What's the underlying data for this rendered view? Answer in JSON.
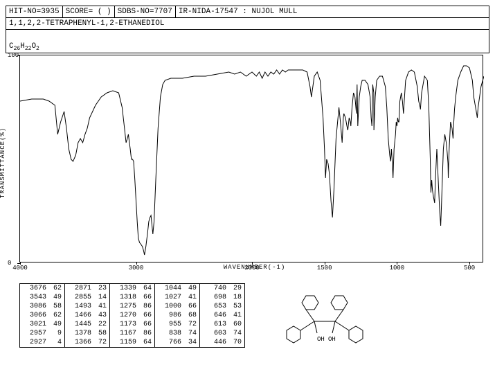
{
  "header": {
    "hit_no": "HIT-NO=3935",
    "score": "SCORE=  (  )",
    "sdbs_no": "SDBS-NO=7707",
    "ir_info": "IR-NIDA-17547 : NUJOL MULL"
  },
  "title": "1,1,2,2-TETRAPHENYL-1,2-ETHANEDIOL",
  "formula_html": "C<sub>26</sub>H<sub>22</sub>O<sub>2</sub>",
  "chart": {
    "ylabel": "TRANSMITTANCE(%)",
    "xlabel": "WAVENUMBER(-1)",
    "ylim": [
      0,
      100
    ],
    "xlim": [
      4000,
      400
    ],
    "yticks": [
      0,
      100
    ],
    "xticks": [
      4000,
      3000,
      2000,
      1500,
      1000,
      500
    ],
    "line_color": "#000000",
    "background": "#ffffff",
    "spectrum": [
      [
        4000,
        78
      ],
      [
        3900,
        79
      ],
      [
        3800,
        79
      ],
      [
        3750,
        78
      ],
      [
        3700,
        76
      ],
      [
        3676,
        62
      ],
      [
        3650,
        68
      ],
      [
        3620,
        73
      ],
      [
        3600,
        65
      ],
      [
        3580,
        55
      ],
      [
        3560,
        50
      ],
      [
        3543,
        49
      ],
      [
        3520,
        52
      ],
      [
        3500,
        58
      ],
      [
        3480,
        60
      ],
      [
        3460,
        58
      ],
      [
        3440,
        62
      ],
      [
        3420,
        65
      ],
      [
        3400,
        70
      ],
      [
        3350,
        76
      ],
      [
        3300,
        80
      ],
      [
        3250,
        82
      ],
      [
        3200,
        83
      ],
      [
        3150,
        82
      ],
      [
        3120,
        75
      ],
      [
        3100,
        65
      ],
      [
        3086,
        58
      ],
      [
        3075,
        60
      ],
      [
        3066,
        62
      ],
      [
        3050,
        55
      ],
      [
        3040,
        50
      ],
      [
        3030,
        50
      ],
      [
        3021,
        49
      ],
      [
        3010,
        40
      ],
      [
        3000,
        30
      ],
      [
        2990,
        20
      ],
      [
        2980,
        12
      ],
      [
        2970,
        10
      ],
      [
        2957,
        9
      ],
      [
        2945,
        8
      ],
      [
        2935,
        6
      ],
      [
        2927,
        4
      ],
      [
        2915,
        8
      ],
      [
        2900,
        15
      ],
      [
        2890,
        20
      ],
      [
        2880,
        22
      ],
      [
        2871,
        23
      ],
      [
        2862,
        18
      ],
      [
        2855,
        14
      ],
      [
        2845,
        20
      ],
      [
        2830,
        40
      ],
      [
        2810,
        65
      ],
      [
        2790,
        80
      ],
      [
        2770,
        86
      ],
      [
        2750,
        88
      ],
      [
        2700,
        89
      ],
      [
        2600,
        89
      ],
      [
        2500,
        90
      ],
      [
        2400,
        90
      ],
      [
        2300,
        91
      ],
      [
        2200,
        92
      ],
      [
        2150,
        91
      ],
      [
        2100,
        92
      ],
      [
        2050,
        90
      ],
      [
        2000,
        92
      ],
      [
        1970,
        90
      ],
      [
        1950,
        92
      ],
      [
        1930,
        89
      ],
      [
        1910,
        92
      ],
      [
        1890,
        90
      ],
      [
        1870,
        92
      ],
      [
        1850,
        91
      ],
      [
        1830,
        93
      ],
      [
        1810,
        91
      ],
      [
        1790,
        93
      ],
      [
        1770,
        92
      ],
      [
        1750,
        93
      ],
      [
        1700,
        93
      ],
      [
        1650,
        93
      ],
      [
        1620,
        92
      ],
      [
        1600,
        85
      ],
      [
        1590,
        80
      ],
      [
        1580,
        85
      ],
      [
        1570,
        90
      ],
      [
        1550,
        92
      ],
      [
        1530,
        88
      ],
      [
        1510,
        70
      ],
      [
        1500,
        55
      ],
      [
        1493,
        41
      ],
      [
        1485,
        50
      ],
      [
        1475,
        48
      ],
      [
        1466,
        43
      ],
      [
        1455,
        30
      ],
      [
        1445,
        22
      ],
      [
        1435,
        35
      ],
      [
        1420,
        60
      ],
      [
        1400,
        75
      ],
      [
        1390,
        68
      ],
      [
        1378,
        58
      ],
      [
        1370,
        70
      ],
      [
        1366,
        72
      ],
      [
        1355,
        70
      ],
      [
        1345,
        66
      ],
      [
        1339,
        64
      ],
      [
        1330,
        70
      ],
      [
        1322,
        68
      ],
      [
        1318,
        66
      ],
      [
        1310,
        75
      ],
      [
        1300,
        82
      ],
      [
        1290,
        80
      ],
      [
        1280,
        72
      ],
      [
        1275,
        86
      ],
      [
        1270,
        66
      ],
      [
        1260,
        80
      ],
      [
        1250,
        85
      ],
      [
        1240,
        88
      ],
      [
        1220,
        88
      ],
      [
        1200,
        86
      ],
      [
        1185,
        80
      ],
      [
        1178,
        70
      ],
      [
        1173,
        66
      ],
      [
        1170,
        75
      ],
      [
        1167,
        86
      ],
      [
        1160,
        82
      ],
      [
        1159,
        64
      ],
      [
        1150,
        80
      ],
      [
        1140,
        88
      ],
      [
        1120,
        90
      ],
      [
        1100,
        90
      ],
      [
        1080,
        85
      ],
      [
        1070,
        75
      ],
      [
        1060,
        60
      ],
      [
        1050,
        52
      ],
      [
        1044,
        49
      ],
      [
        1038,
        55
      ],
      [
        1032,
        48
      ],
      [
        1027,
        41
      ],
      [
        1020,
        55
      ],
      [
        1010,
        62
      ],
      [
        1005,
        68
      ],
      [
        1000,
        66
      ],
      [
        995,
        70
      ],
      [
        990,
        68
      ],
      [
        986,
        68
      ],
      [
        980,
        78
      ],
      [
        970,
        82
      ],
      [
        962,
        78
      ],
      [
        955,
        72
      ],
      [
        948,
        80
      ],
      [
        940,
        88
      ],
      [
        920,
        92
      ],
      [
        900,
        93
      ],
      [
        880,
        92
      ],
      [
        860,
        85
      ],
      [
        850,
        78
      ],
      [
        840,
        75
      ],
      [
        838,
        74
      ],
      [
        830,
        82
      ],
      [
        810,
        90
      ],
      [
        790,
        88
      ],
      [
        780,
        75
      ],
      [
        770,
        50
      ],
      [
        766,
        34
      ],
      [
        760,
        40
      ],
      [
        755,
        35
      ],
      [
        748,
        32
      ],
      [
        740,
        29
      ],
      [
        735,
        40
      ],
      [
        725,
        55
      ],
      [
        715,
        40
      ],
      [
        705,
        25
      ],
      [
        698,
        18
      ],
      [
        692,
        30
      ],
      [
        680,
        55
      ],
      [
        670,
        62
      ],
      [
        660,
        58
      ],
      [
        653,
        53
      ],
      [
        648,
        48
      ],
      [
        646,
        41
      ],
      [
        640,
        55
      ],
      [
        630,
        68
      ],
      [
        620,
        65
      ],
      [
        613,
        60
      ],
      [
        608,
        68
      ],
      [
        603,
        74
      ],
      [
        595,
        80
      ],
      [
        580,
        88
      ],
      [
        560,
        92
      ],
      [
        540,
        95
      ],
      [
        520,
        95
      ],
      [
        500,
        94
      ],
      [
        480,
        88
      ],
      [
        470,
        80
      ],
      [
        460,
        76
      ],
      [
        450,
        72
      ],
      [
        446,
        70
      ],
      [
        440,
        75
      ],
      [
        420,
        85
      ],
      [
        400,
        90
      ]
    ]
  },
  "peak_table": [
    [
      [
        3676,
        62
      ],
      [
        3543,
        49
      ],
      [
        3086,
        58
      ],
      [
        3066,
        62
      ],
      [
        3021,
        49
      ],
      [
        2957,
        9
      ],
      [
        2927,
        4
      ]
    ],
    [
      [
        2871,
        23
      ],
      [
        2855,
        14
      ],
      [
        1493,
        41
      ],
      [
        1466,
        43
      ],
      [
        1445,
        22
      ],
      [
        1378,
        58
      ],
      [
        1366,
        72
      ]
    ],
    [
      [
        1339,
        64
      ],
      [
        1318,
        66
      ],
      [
        1275,
        86
      ],
      [
        1270,
        66
      ],
      [
        1173,
        66
      ],
      [
        1167,
        86
      ],
      [
        1159,
        64
      ]
    ],
    [
      [
        1044,
        49
      ],
      [
        1027,
        41
      ],
      [
        1000,
        66
      ],
      [
        986,
        68
      ],
      [
        955,
        72
      ],
      [
        838,
        74
      ],
      [
        766,
        34
      ]
    ],
    [
      [
        740,
        29
      ],
      [
        698,
        18
      ],
      [
        653,
        53
      ],
      [
        646,
        41
      ],
      [
        613,
        60
      ],
      [
        603,
        74
      ],
      [
        446,
        70
      ]
    ]
  ],
  "molecule": {
    "oh": "OH"
  }
}
